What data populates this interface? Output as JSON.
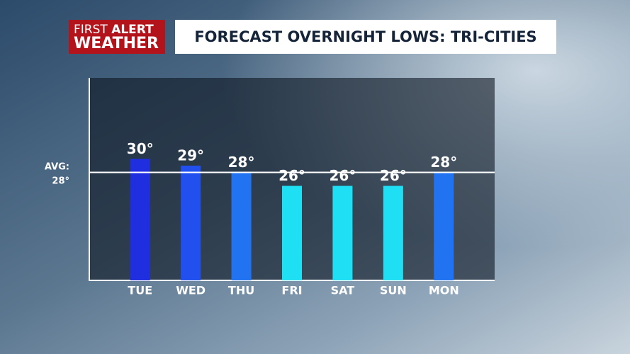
{
  "logo": {
    "top_left": "FIRST",
    "top_right": "ALERT",
    "bottom": "WEATHER"
  },
  "chart_data": {
    "type": "bar",
    "title": "FORECAST OVERNIGHT LOWS: TRI-CITIES",
    "categories": [
      "TUE",
      "WED",
      "THU",
      "FRI",
      "SAT",
      "SUN",
      "MON"
    ],
    "values": [
      30,
      29,
      28,
      26,
      26,
      26,
      28
    ],
    "value_labels": [
      "30°",
      "29°",
      "28°",
      "26°",
      "26°",
      "26°",
      "28°"
    ],
    "colors": [
      "#1f2fe0",
      "#2150ee",
      "#2273f2",
      "#1fdff5",
      "#1fdff5",
      "#1fdff5",
      "#2273f2"
    ],
    "average": {
      "label": "AVG:",
      "value": 28,
      "value_label": "28°"
    },
    "ylim": [
      12,
      42
    ]
  }
}
